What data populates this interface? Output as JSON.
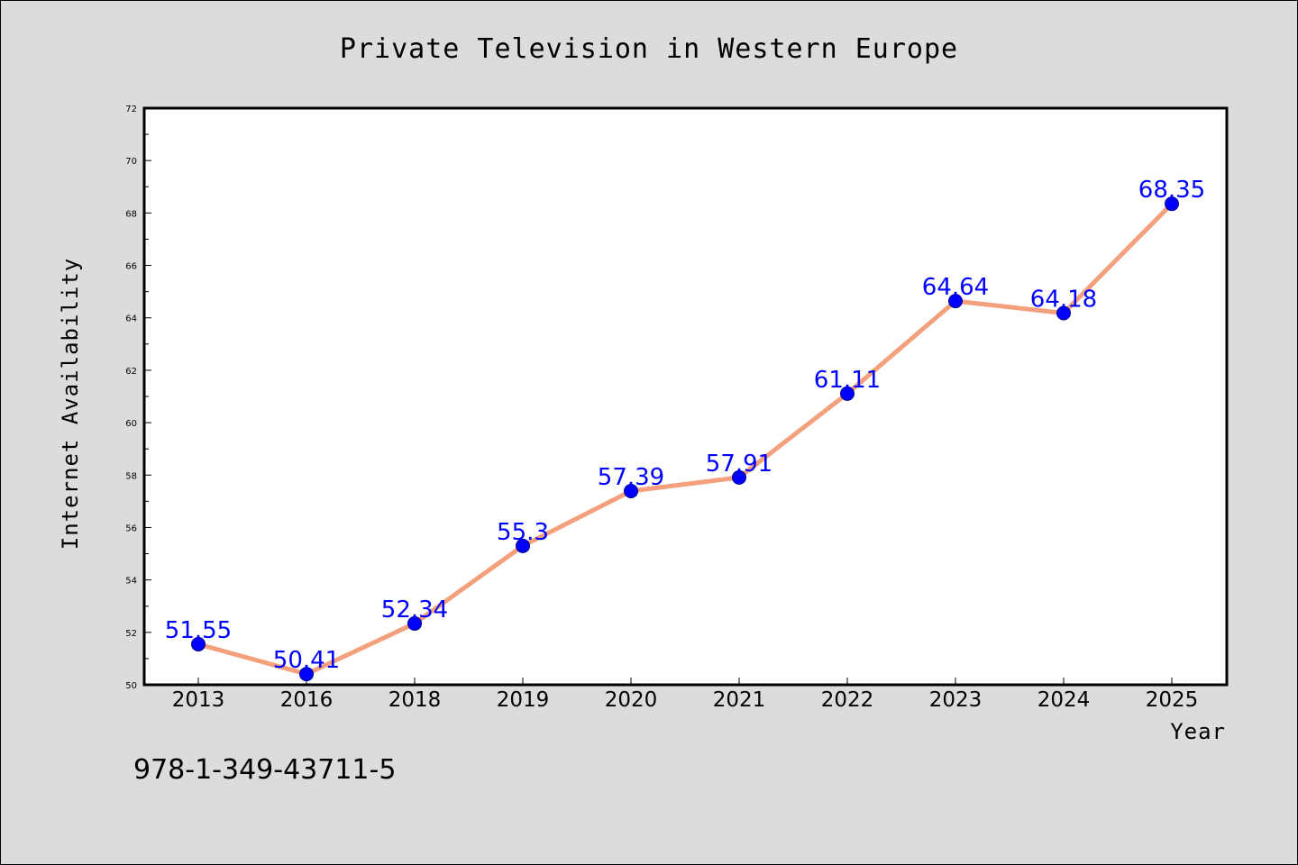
{
  "chart_data": {
    "type": "line",
    "title": "Private Television in Western Europe",
    "xlabel": "Year",
    "ylabel": "Internet Availability",
    "categories": [
      "2013",
      "2016",
      "2018",
      "2019",
      "2020",
      "2021",
      "2022",
      "2023",
      "2024",
      "2025"
    ],
    "series": [
      {
        "values": [
          51.55,
          50.41,
          52.34,
          55.3,
          57.39,
          57.91,
          61.11,
          64.64,
          64.18,
          68.35
        ],
        "labels": [
          "51.55",
          "50.41",
          "52.34",
          "55.3",
          "57.39",
          "57.91",
          "61.11",
          "64.64",
          "64.18",
          "68.35"
        ]
      }
    ],
    "ylim": [
      50,
      72
    ],
    "yticks": [
      "50",
      "52",
      "54",
      "56",
      "58",
      "60",
      "62",
      "64",
      "66",
      "68",
      "70",
      "72"
    ],
    "grid": false,
    "legend": "none",
    "colors": {
      "line": "#f4a07c",
      "marker": "#0000ff",
      "marker_edge": "#00008b",
      "label": "#0000ff",
      "background": "#dcdcdc",
      "plot_background": "#ffffff"
    }
  },
  "footer_text": "978-1-349-43711-5"
}
